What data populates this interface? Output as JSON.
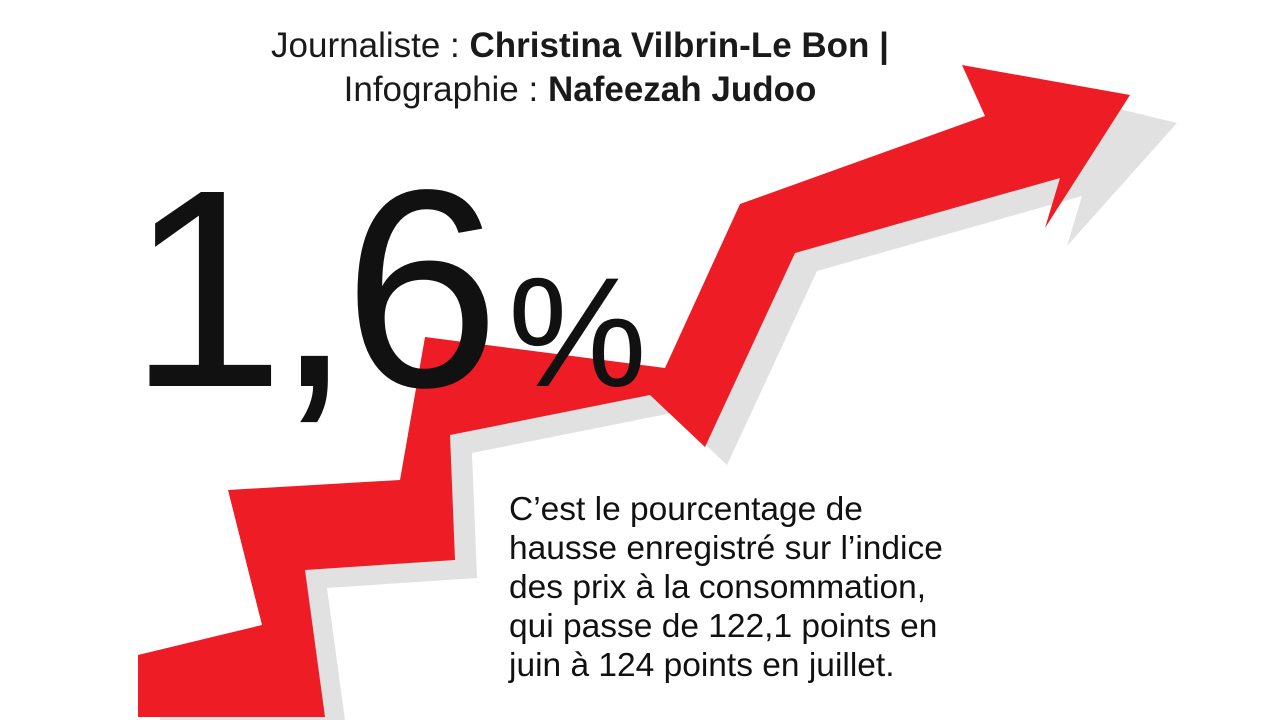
{
  "credits": {
    "journalist_label": "Journaliste : ",
    "journalist_name": "Christina Vilbrin-Le Bon |",
    "graphics_label": "Infographie : ",
    "graphics_name": "Nafeezah Judoo"
  },
  "headline": {
    "value": "1,6",
    "unit": "%"
  },
  "description": {
    "lines": [
      "C’est le pourcentage de",
      "hausse enregistré sur l’indice",
      "des prix à la consommation,",
      "qui passe de 122,1 points en",
      "juin à 124 points en juillet."
    ]
  },
  "colors": {
    "arrow": "#ee1c25",
    "shadow": "#cfcfcf",
    "text": "#111111"
  },
  "icons": {
    "arrow": "rising-arrow-icon"
  }
}
